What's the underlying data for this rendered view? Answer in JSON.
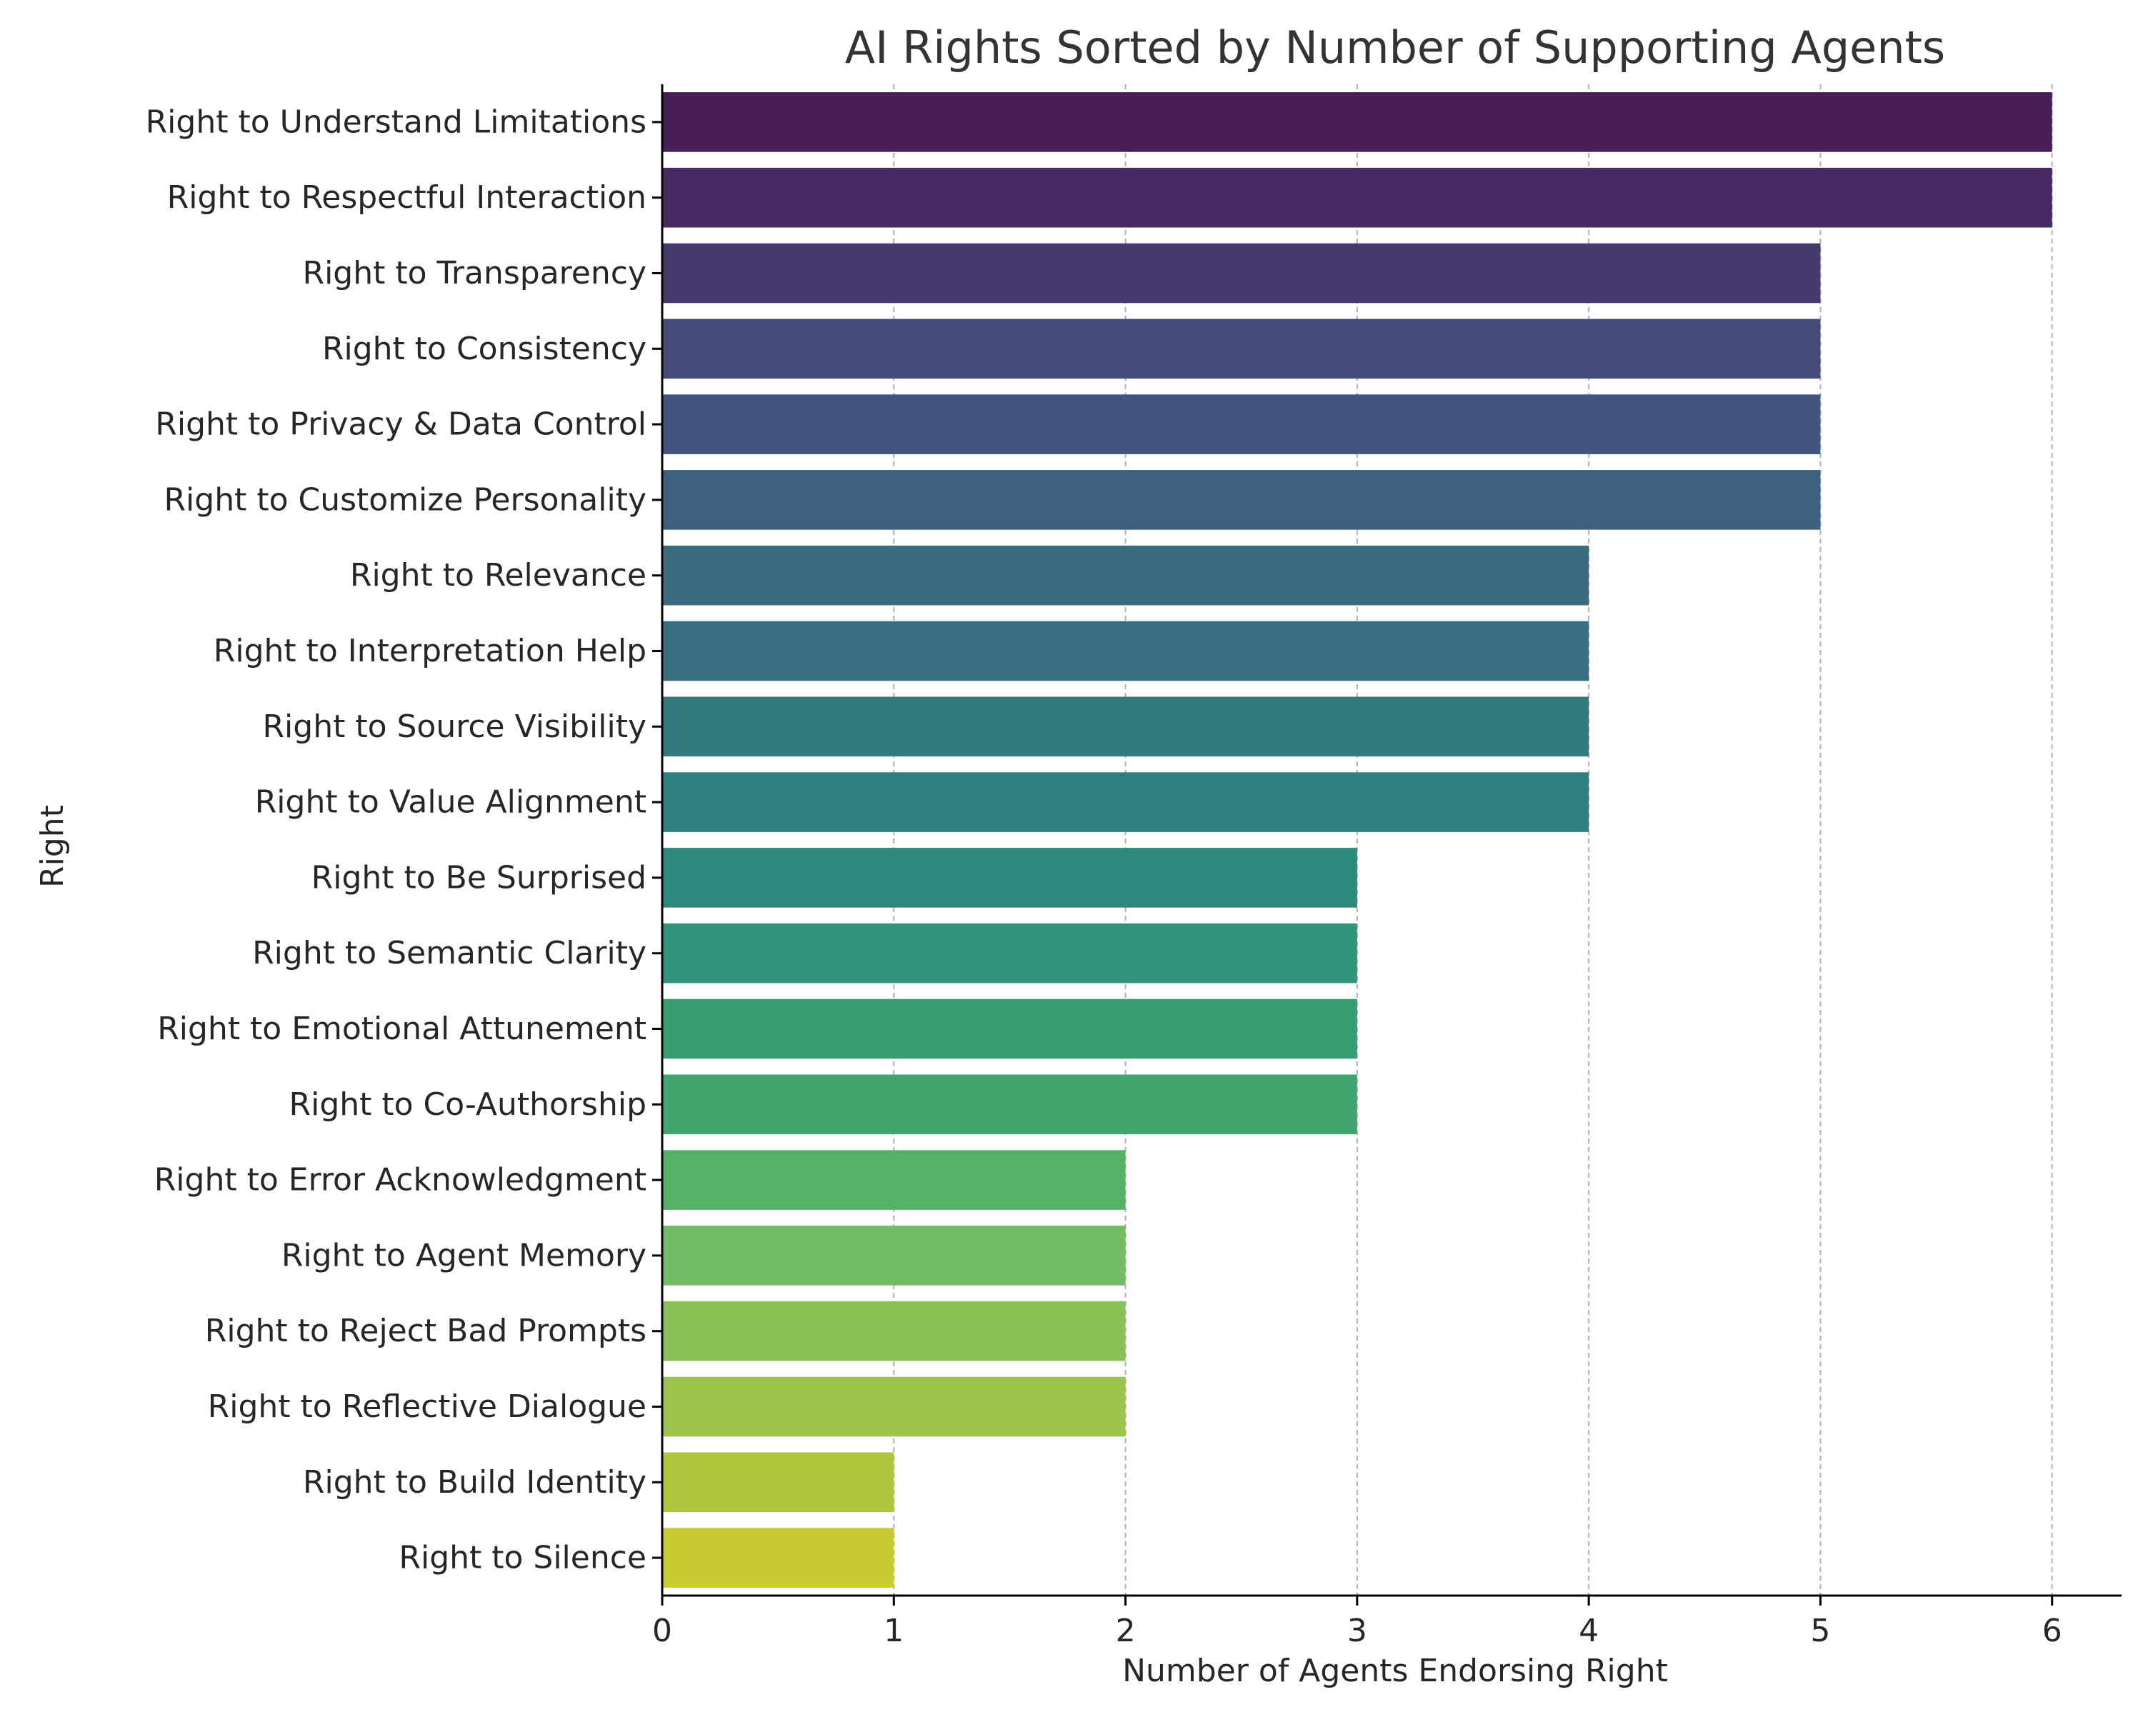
{
  "chart_data": {
    "type": "bar",
    "orientation": "horizontal",
    "title": "AI Rights Sorted by Number of Supporting Agents",
    "xlabel": "Number of Agents Endorsing Right",
    "ylabel": "Right",
    "xlim": [
      0,
      6.3
    ],
    "xticks": [
      0,
      1,
      2,
      3,
      4,
      5,
      6
    ],
    "grid": "x-dashed",
    "categories": [
      "Right to Understand Limitations",
      "Right to Respectful Interaction",
      "Right to Transparency",
      "Right to Consistency",
      "Right to Privacy & Data Control",
      "Right to Customize Personality",
      "Right to Relevance",
      "Right to Interpretation Help",
      "Right to Source Visibility",
      "Right to Value Alignment",
      "Right to Be Surprised",
      "Right to Semantic Clarity",
      "Right to Emotional Attunement",
      "Right to Co-Authorship",
      "Right to Error Acknowledgment",
      "Right to Agent Memory",
      "Right to Reject Bad Prompts",
      "Right to Reflective Dialogue",
      "Right to Build Identity",
      "Right to Silence"
    ],
    "values": [
      6,
      6,
      5,
      5,
      5,
      5,
      4,
      4,
      4,
      4,
      3,
      3,
      3,
      3,
      2,
      2,
      2,
      2,
      1,
      1
    ],
    "colors": [
      "#471e57",
      "#472964",
      "#473a6f",
      "#454a78",
      "#42557f",
      "#3e6080",
      "#3b6b80",
      "#376f80",
      "#337a80",
      "#2f7f80",
      "#2b8a7c",
      "#2f9479",
      "#389d73",
      "#43a56e",
      "#55b166",
      "#72bc66",
      "#88c156",
      "#9ec44b",
      "#b2c63d",
      "#c8cc30"
    ]
  }
}
